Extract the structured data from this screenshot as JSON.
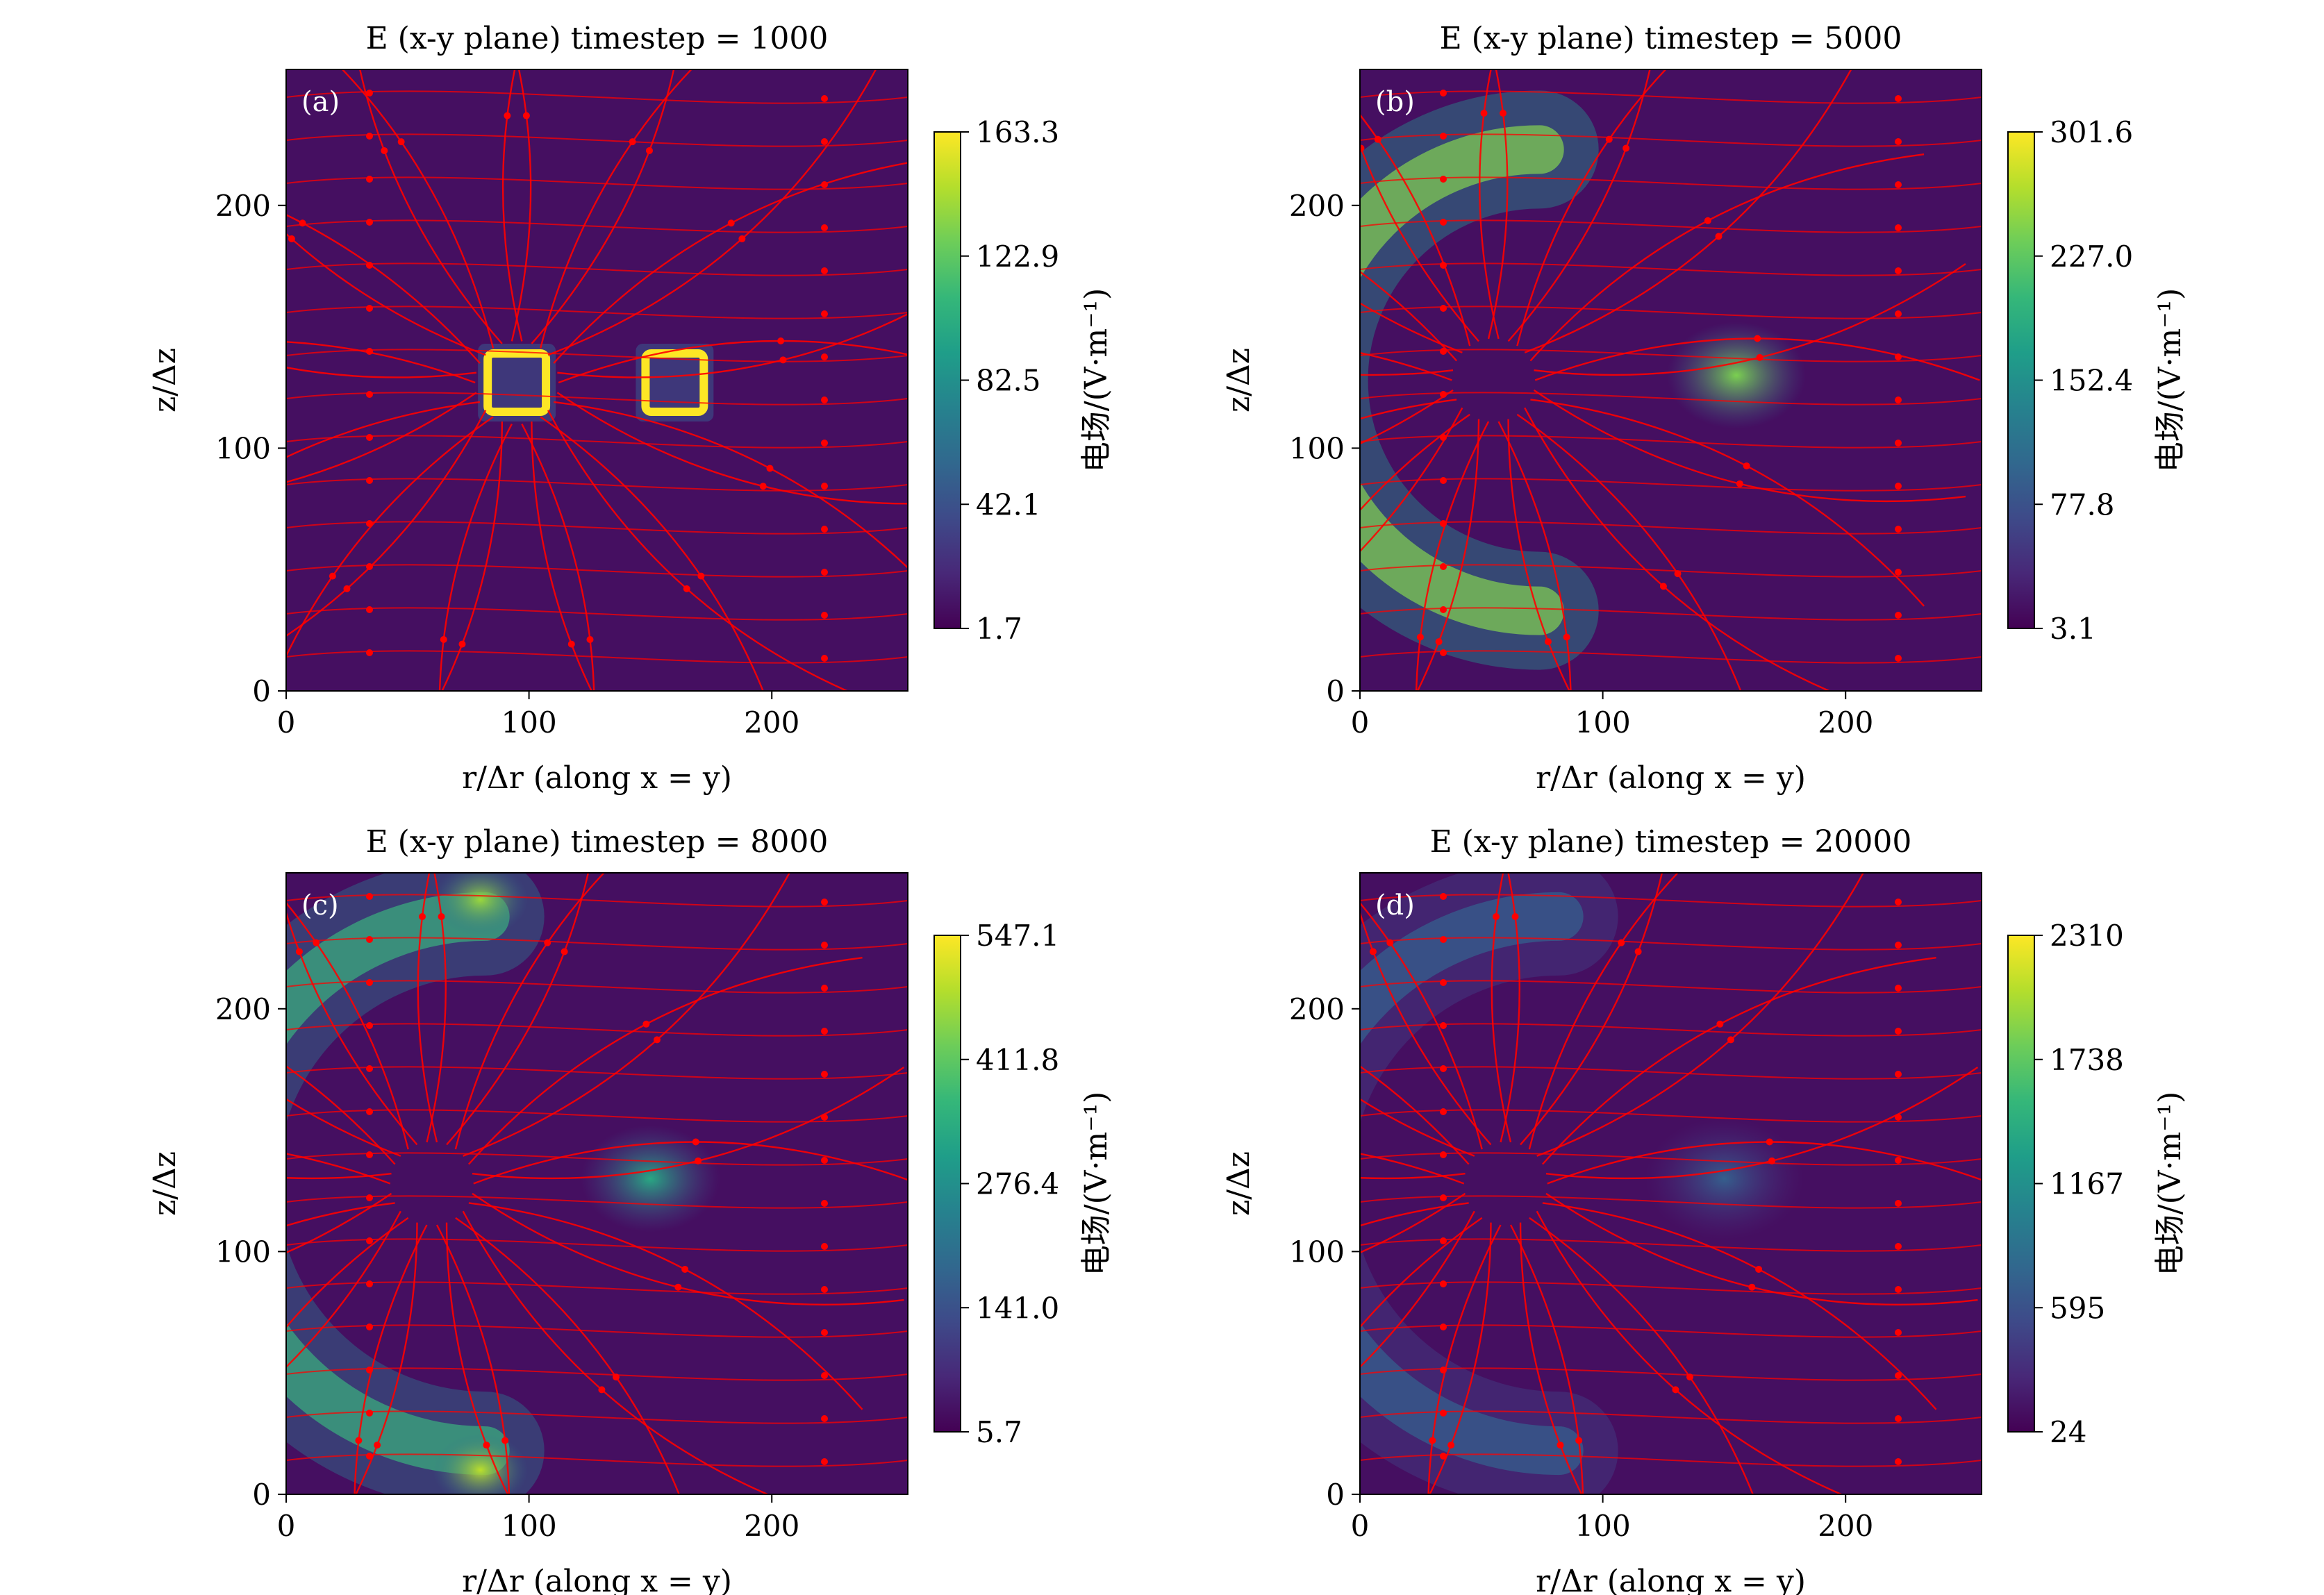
{
  "chart_data": [
    {
      "type": "heatmap",
      "panel_label": "(a)",
      "title": "E (x-y plane) timestep = 1000",
      "xlabel": "r/Δr (along x = y)",
      "ylabel": "z/Δz",
      "xlim": [
        0,
        256
      ],
      "ylim": [
        0,
        256
      ],
      "xticks": [
        "0",
        "100",
        "200"
      ],
      "yticks": [
        "0",
        "100",
        "200"
      ],
      "colorbar_label": "电场/(V·m⁻¹)",
      "colorbar_ticks": [
        "1.7",
        "42.1",
        "82.5",
        "122.9",
        "163.3"
      ],
      "colormap": "viridis",
      "streamline_color": "#ff0000",
      "hotspots": [
        {
          "r": 95,
          "z": 127,
          "shape": "square_ring",
          "half_size": 12,
          "intensity": 1.0
        },
        {
          "r": 160,
          "z": 127,
          "shape": "square_ring",
          "half_size": 12,
          "intensity": 1.0
        }
      ]
    },
    {
      "type": "heatmap",
      "panel_label": "(b)",
      "title": "E (x-y plane) timestep = 5000",
      "xlabel": "r/Δr (along x = y)",
      "ylabel": "z/Δz",
      "xlim": [
        0,
        256
      ],
      "ylim": [
        0,
        256
      ],
      "xticks": [
        "0",
        "100",
        "200"
      ],
      "yticks": [
        "0",
        "100",
        "200"
      ],
      "colorbar_label": "电场/(V·m⁻¹)",
      "colorbar_ticks": [
        "3.1",
        "77.8",
        "152.4",
        "227.0",
        "301.6"
      ],
      "colormap": "viridis",
      "streamline_color": "#ff0000",
      "hotspots": [
        {
          "r": 55,
          "z": 128,
          "shape": "arc",
          "radius": 95,
          "intensity": 0.9
        },
        {
          "r": 155,
          "z": 130,
          "shape": "blob",
          "radius": 22,
          "intensity": 0.8
        }
      ]
    },
    {
      "type": "heatmap",
      "panel_label": "(c)",
      "title": "E (x-y plane) timestep = 8000",
      "xlabel": "r/Δr (along x = y)",
      "ylabel": "z/Δz",
      "xlim": [
        0,
        256
      ],
      "ylim": [
        0,
        256
      ],
      "xticks": [
        "0",
        "100",
        "200"
      ],
      "yticks": [
        "0",
        "100",
        "200"
      ],
      "colorbar_label": "电场/(V·m⁻¹)",
      "colorbar_ticks": [
        "5.7",
        "141.0",
        "276.4",
        "411.8",
        "547.1"
      ],
      "colormap": "viridis",
      "streamline_color": "#ff0000",
      "hotspots": [
        {
          "r": 60,
          "z": 128,
          "shape": "arc",
          "radius": 110,
          "intensity": 0.7
        },
        {
          "r": 80,
          "z": 245,
          "shape": "blob",
          "radius": 15,
          "intensity": 0.85
        },
        {
          "r": 80,
          "z": 10,
          "shape": "blob",
          "radius": 15,
          "intensity": 0.9
        },
        {
          "r": 150,
          "z": 130,
          "shape": "blob",
          "radius": 22,
          "intensity": 0.6
        }
      ]
    },
    {
      "type": "heatmap",
      "panel_label": "(d)",
      "title": "E (x-y plane) timestep = 20000",
      "xlabel": "r/Δr (along x = y)",
      "ylabel": "z/Δz",
      "xlim": [
        0,
        256
      ],
      "ylim": [
        0,
        256
      ],
      "xticks": [
        "0",
        "100",
        "200"
      ],
      "yticks": [
        "0",
        "100",
        "200"
      ],
      "colorbar_label": "电场/(V·m⁻¹)",
      "colorbar_ticks": [
        "24",
        "595",
        "1167",
        "1738",
        "2310"
      ],
      "colormap": "viridis",
      "streamline_color": "#ff0000",
      "hotspots": [
        {
          "r": 60,
          "z": 128,
          "shape": "arc",
          "radius": 110,
          "intensity": 0.35
        },
        {
          "r": 150,
          "z": 130,
          "shape": "blob",
          "radius": 25,
          "intensity": 0.3
        }
      ]
    }
  ]
}
